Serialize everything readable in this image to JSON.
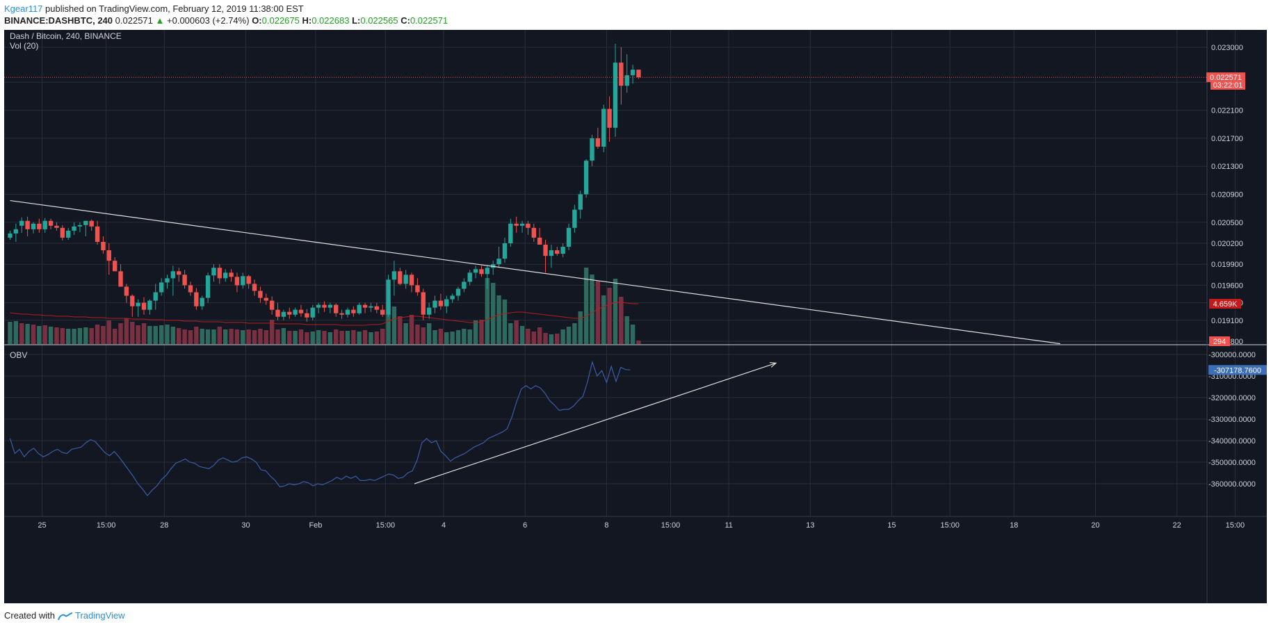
{
  "header": {
    "author": "Kgear117",
    "published": "published on TradingView.com, February 12, 2019 11:38:00 EST",
    "symbol": "BINANCE:DASHBTC, 240",
    "last": "0.022571",
    "change_arrow": "▲",
    "change": "+0.000603 (+2.74%)",
    "o_label": "O:",
    "o": "0.022675",
    "h_label": "H:",
    "h": "0.022683",
    "l_label": "L:",
    "l": "0.022565",
    "c_label": "C:",
    "c": "0.022571"
  },
  "legend": {
    "main": "Dash / Bitcoin, 240, BINANCE",
    "vol": "Vol (20)",
    "obv": "OBV"
  },
  "badges": {
    "price": "0.022571",
    "countdown": "03:22:01",
    "vol_ma": "4.659K",
    "vol": "294",
    "obv": "-307178.7600"
  },
  "footer": {
    "created_with": "Created with",
    "brand": "TradingView"
  },
  "colors": {
    "background": "#131722",
    "grid": "#2a2e39",
    "up": "#26a69a",
    "down": "#ef5350",
    "vol_up": "#2e6b5e",
    "vol_down": "#7a3040",
    "vol_ma": "#b71c1c",
    "obv_line": "#3b5da8",
    "obv_badge": "#3d6fb8",
    "price_badge": "#ef5350",
    "trendline": "#e0e0e0"
  },
  "chart_data": {
    "type": "candlestick",
    "price_axis": {
      "ticks": [
        0.023,
        0.0225,
        0.0221,
        0.0217,
        0.0213,
        0.0209,
        0.0205,
        0.0202,
        0.0199,
        0.0196,
        0.01935,
        0.0191,
        0.0188
      ],
      "tick_labels": [
        "0.023000",
        "0.022500",
        "0.022100",
        "0.021700",
        "0.021300",
        "0.020900",
        "0.020500",
        "0.020200",
        "0.019900",
        "0.019600",
        "0.019350",
        "0.019100",
        "0.018800"
      ],
      "range": [
        0.01876,
        0.02308
      ]
    },
    "time_axis": {
      "labels": [
        "25",
        "15:00",
        "28",
        "30",
        "Feb",
        "15:00",
        "4",
        "6",
        "8",
        "15:00",
        "11",
        "13",
        "15",
        "15:00",
        "18",
        "20",
        "22",
        "15:00"
      ],
      "label_bars": [
        5.5,
        16.5,
        26.5,
        40.5,
        52.5,
        64.5,
        74.5,
        88.5,
        102.5,
        113.5,
        123.5,
        137.5,
        151.5,
        161.5,
        172.5,
        186.5,
        200.5,
        210.5
      ]
    },
    "candles_ohlc": [
      [
        0.02028,
        0.02038,
        0.02025,
        0.02034
      ],
      [
        0.02034,
        0.02048,
        0.02022,
        0.0204
      ],
      [
        0.02045,
        0.02057,
        0.02035,
        0.02052
      ],
      [
        0.02052,
        0.02058,
        0.0203,
        0.0204
      ],
      [
        0.0204,
        0.0205,
        0.02034,
        0.02048
      ],
      [
        0.02048,
        0.02055,
        0.02035,
        0.0204
      ],
      [
        0.0204,
        0.02056,
        0.02035,
        0.02052
      ],
      [
        0.02052,
        0.02055,
        0.0204,
        0.02045
      ],
      [
        0.02045,
        0.0205,
        0.02038,
        0.02042
      ],
      [
        0.02042,
        0.02046,
        0.02024,
        0.02028
      ],
      [
        0.02028,
        0.02042,
        0.02025,
        0.02038
      ],
      [
        0.02038,
        0.0205,
        0.02032,
        0.02044
      ],
      [
        0.02044,
        0.0205,
        0.02036,
        0.02046
      ],
      [
        0.02046,
        0.02052,
        0.0203,
        0.02052
      ],
      [
        0.02052,
        0.02054,
        0.02038,
        0.02044
      ],
      [
        0.02044,
        0.02052,
        0.02018,
        0.02022
      ],
      [
        0.02022,
        0.0203,
        0.02005,
        0.0201
      ],
      [
        0.0201,
        0.0202,
        0.01975,
        0.01995
      ],
      [
        0.01995,
        0.02,
        0.01984,
        0.0198
      ],
      [
        0.0198,
        0.0199,
        0.01975,
        0.01958
      ],
      [
        0.01958,
        0.01962,
        0.01935,
        0.01945
      ],
      [
        0.01945,
        0.01947,
        0.01915,
        0.0193
      ],
      [
        0.0193,
        0.0194,
        0.01915,
        0.01935
      ],
      [
        0.01935,
        0.01943,
        0.01918,
        0.01925
      ],
      [
        0.01925,
        0.0194,
        0.01918,
        0.01938
      ],
      [
        0.01938,
        0.01962,
        0.01925,
        0.0195
      ],
      [
        0.0195,
        0.0197,
        0.01945,
        0.01964
      ],
      [
        0.01964,
        0.01975,
        0.01955,
        0.0197
      ],
      [
        0.0197,
        0.01988,
        0.01945,
        0.0198
      ],
      [
        0.0198,
        0.01985,
        0.01965,
        0.01975
      ],
      [
        0.01975,
        0.01982,
        0.01955,
        0.0196
      ],
      [
        0.0196,
        0.01965,
        0.01945,
        0.0195
      ],
      [
        0.0195,
        0.01956,
        0.01925,
        0.0193
      ],
      [
        0.0193,
        0.01945,
        0.01925,
        0.01942
      ],
      [
        0.01942,
        0.01978,
        0.01935,
        0.01974
      ],
      [
        0.01974,
        0.0199,
        0.01965,
        0.01985
      ],
      [
        0.01985,
        0.0199,
        0.01962,
        0.0197
      ],
      [
        0.0197,
        0.01983,
        0.01965,
        0.01978
      ],
      [
        0.01978,
        0.01983,
        0.01965,
        0.01972
      ],
      [
        0.01972,
        0.01978,
        0.0195,
        0.0196
      ],
      [
        0.0196,
        0.01978,
        0.01955,
        0.01973
      ],
      [
        0.01973,
        0.01975,
        0.01955,
        0.01962
      ],
      [
        0.01962,
        0.01968,
        0.01945,
        0.01952
      ],
      [
        0.01952,
        0.01958,
        0.01935,
        0.01942
      ],
      [
        0.01942,
        0.01948,
        0.01932,
        0.01938
      ],
      [
        0.01938,
        0.01944,
        0.01918,
        0.01925
      ],
      [
        0.01925,
        0.01935,
        0.0191,
        0.01915
      ],
      [
        0.01915,
        0.01925,
        0.0191,
        0.01922
      ],
      [
        0.01922,
        0.01928,
        0.01912,
        0.01918
      ],
      [
        0.01918,
        0.01928,
        0.01915,
        0.01925
      ],
      [
        0.01925,
        0.01932,
        0.01915,
        0.0192
      ],
      [
        0.0192,
        0.01926,
        0.01908,
        0.01914
      ],
      [
        0.01914,
        0.01932,
        0.0191,
        0.01928
      ],
      [
        0.01928,
        0.01935,
        0.0192,
        0.01932
      ],
      [
        0.01932,
        0.01937,
        0.01922,
        0.01928
      ],
      [
        0.01928,
        0.01935,
        0.0192,
        0.01932
      ],
      [
        0.01932,
        0.01934,
        0.01915,
        0.0192
      ],
      [
        0.0192,
        0.01925,
        0.01912,
        0.01918
      ],
      [
        0.01918,
        0.01928,
        0.01914,
        0.01925
      ],
      [
        0.01925,
        0.0193,
        0.01915,
        0.0192
      ],
      [
        0.0192,
        0.01935,
        0.01918,
        0.01932
      ],
      [
        0.01932,
        0.01935,
        0.0192,
        0.01928
      ],
      [
        0.01928,
        0.01935,
        0.01922,
        0.0193
      ],
      [
        0.0193,
        0.01935,
        0.0192,
        0.01925
      ],
      [
        0.01925,
        0.01932,
        0.01915,
        0.01918
      ],
      [
        0.01918,
        0.01975,
        0.01915,
        0.01968
      ],
      [
        0.01968,
        0.01995,
        0.01945,
        0.0198
      ],
      [
        0.0198,
        0.01985,
        0.0196,
        0.01962
      ],
      [
        0.01962,
        0.01982,
        0.01955,
        0.01975
      ],
      [
        0.01975,
        0.01978,
        0.0195,
        0.0196
      ],
      [
        0.0196,
        0.0197,
        0.01945,
        0.0195
      ],
      [
        0.0195,
        0.01955,
        0.0191,
        0.01918
      ],
      [
        0.01918,
        0.01935,
        0.01912,
        0.01928
      ],
      [
        0.01928,
        0.01945,
        0.0192,
        0.01938
      ],
      [
        0.01938,
        0.01948,
        0.01925,
        0.0193
      ],
      [
        0.0193,
        0.01945,
        0.0192,
        0.0194
      ],
      [
        0.0194,
        0.01948,
        0.01935,
        0.01945
      ],
      [
        0.01945,
        0.01958,
        0.01938,
        0.01955
      ],
      [
        0.01955,
        0.0197,
        0.0195,
        0.01965
      ],
      [
        0.01965,
        0.01982,
        0.0196,
        0.01978
      ],
      [
        0.01978,
        0.01988,
        0.0197,
        0.01983
      ],
      [
        0.01983,
        0.01988,
        0.01972,
        0.01976
      ],
      [
        0.01976,
        0.01988,
        0.01955,
        0.01985
      ],
      [
        0.01985,
        0.01995,
        0.01975,
        0.0199
      ],
      [
        0.0199,
        0.02015,
        0.01985,
        0.01998
      ],
      [
        0.01998,
        0.02028,
        0.01992,
        0.0202
      ],
      [
        0.0202,
        0.02055,
        0.02015,
        0.02048
      ],
      [
        0.02048,
        0.02058,
        0.02035,
        0.02045
      ],
      [
        0.02045,
        0.02052,
        0.02035,
        0.02048
      ],
      [
        0.02048,
        0.02052,
        0.02032,
        0.02042
      ],
      [
        0.02042,
        0.02048,
        0.02022,
        0.02028
      ],
      [
        0.02028,
        0.02042,
        0.0202,
        0.02018
      ],
      [
        0.02018,
        0.02025,
        0.01978,
        0.02002
      ],
      [
        0.02002,
        0.02018,
        0.01985,
        0.0201
      ],
      [
        0.0201,
        0.02015,
        0.02002,
        0.02005
      ],
      [
        0.02005,
        0.0202,
        0.02,
        0.02015
      ],
      [
        0.02015,
        0.02048,
        0.0201,
        0.02042
      ],
      [
        0.02042,
        0.02075,
        0.02035,
        0.02068
      ],
      [
        0.02068,
        0.02095,
        0.02055,
        0.0209
      ],
      [
        0.0209,
        0.0214,
        0.02085,
        0.02138
      ],
      [
        0.02138,
        0.02175,
        0.0213,
        0.0217
      ],
      [
        0.0217,
        0.02185,
        0.02155,
        0.02158
      ],
      [
        0.02158,
        0.02218,
        0.0215,
        0.02212
      ],
      [
        0.02212,
        0.0223,
        0.02165,
        0.02185
      ],
      [
        0.02185,
        0.02305,
        0.02172,
        0.02278
      ],
      [
        0.02278,
        0.023,
        0.02218,
        0.02245
      ],
      [
        0.02245,
        0.0229,
        0.02235,
        0.0226
      ],
      [
        0.0226,
        0.02275,
        0.02248,
        0.02268
      ],
      [
        0.02268,
        0.02268,
        0.02255,
        0.02257
      ]
    ],
    "volume": [
      32,
      33,
      30,
      29,
      28,
      26,
      27,
      25,
      24,
      23,
      22,
      22,
      23,
      24,
      23,
      28,
      26,
      34,
      22,
      30,
      37,
      32,
      27,
      30,
      26,
      26,
      27,
      28,
      25,
      23,
      21,
      20,
      25,
      22,
      21,
      21,
      25,
      21,
      22,
      21,
      20,
      21,
      20,
      22,
      20,
      35,
      21,
      23,
      19,
      19,
      21,
      17,
      18,
      20,
      19,
      17,
      21,
      19,
      19,
      20,
      18,
      20,
      17,
      18,
      22,
      60,
      54,
      40,
      30,
      42,
      28,
      24,
      30,
      20,
      22,
      17,
      18,
      20,
      22,
      21,
      34,
      35,
      95,
      88,
      70,
      64,
      30,
      34,
      26,
      22,
      18,
      24,
      16,
      14,
      15,
      21,
      25,
      30,
      47,
      110,
      100,
      91,
      70,
      81,
      94,
      68,
      40,
      28,
      5
    ],
    "volume_up_flags": [
      1,
      1,
      0,
      1,
      0,
      1,
      0,
      1,
      0,
      0,
      1,
      1,
      1,
      1,
      0,
      0,
      0,
      0,
      0,
      0,
      0,
      0,
      0,
      0,
      1,
      1,
      1,
      1,
      1,
      0,
      0,
      0,
      0,
      1,
      1,
      1,
      0,
      1,
      0,
      0,
      1,
      0,
      0,
      0,
      0,
      0,
      0,
      1,
      0,
      1,
      0,
      0,
      1,
      1,
      0,
      1,
      0,
      0,
      1,
      0,
      1,
      0,
      1,
      0,
      0,
      1,
      1,
      0,
      1,
      0,
      0,
      0,
      1,
      1,
      0,
      1,
      1,
      1,
      1,
      1,
      1,
      0,
      1,
      1,
      1,
      1,
      1,
      0,
      1,
      0,
      0,
      0,
      0,
      1,
      0,
      1,
      1,
      1,
      1,
      1,
      1,
      0,
      1,
      0,
      1,
      0,
      1,
      1,
      0
    ],
    "volume_ma": [
      45,
      44,
      43,
      43,
      42,
      42,
      41,
      41,
      40,
      40,
      40,
      39,
      39,
      39,
      38,
      38,
      38,
      37,
      37,
      37,
      37,
      36,
      36,
      36,
      35,
      35,
      35,
      34,
      34,
      34,
      33,
      33,
      33,
      32,
      32,
      32,
      32,
      31,
      31,
      31,
      31,
      30,
      30,
      30,
      30,
      30,
      29,
      29,
      29,
      29,
      29,
      28,
      28,
      28,
      28,
      28,
      28,
      27,
      27,
      27,
      27,
      27,
      28,
      28,
      29,
      33,
      36,
      38,
      39,
      40,
      40,
      39,
      38,
      37,
      36,
      35,
      34,
      33,
      32,
      31,
      31,
      32,
      35,
      39,
      42,
      44,
      45,
      46,
      46,
      45,
      44,
      43,
      42,
      41,
      40,
      39,
      38,
      37,
      37,
      40,
      45,
      50,
      54,
      57,
      60,
      60,
      59,
      58,
      58
    ],
    "obv_values": [
      -339000,
      -346000,
      -344000,
      -347500,
      -345000,
      -343500,
      -346000,
      -347500,
      -346500,
      -345000,
      -344000,
      -345500,
      -346000,
      -344000,
      -343500,
      -343000,
      -341000,
      -339500,
      -340500,
      -343000,
      -345500,
      -347000,
      -345000,
      -347500,
      -350500,
      -353500,
      -356500,
      -360000,
      -362500,
      -365500,
      -363000,
      -361000,
      -358000,
      -356000,
      -353000,
      -350500,
      -349500,
      -348500,
      -350000,
      -350500,
      -352000,
      -352500,
      -353000,
      -351500,
      -349000,
      -348000,
      -349000,
      -350000,
      -349500,
      -348000,
      -347500,
      -348500,
      -350000,
      -353500,
      -354000,
      -356500,
      -358500,
      -361500,
      -361000,
      -360000,
      -360500,
      -360000,
      -359000,
      -359500,
      -361000,
      -360000,
      -360500,
      -359500,
      -358500,
      -357000,
      -358000,
      -356500,
      -357500,
      -356500,
      -358500,
      -358500,
      -358000,
      -358500,
      -357500,
      -356500,
      -355500,
      -356000,
      -357500,
      -357000,
      -355000,
      -354000,
      -349000,
      -341000,
      -339000,
      -341000,
      -340000,
      -345000,
      -347000,
      -349500,
      -348000,
      -347000,
      -346000,
      -344500,
      -343000,
      -342000,
      -341000,
      -339000,
      -338000,
      -337000,
      -336000,
      -334500,
      -329000,
      -322000,
      -316000,
      -314500,
      -316000,
      -314500,
      -315500,
      -318000,
      -321500,
      -323500,
      -326000,
      -325500,
      -325500,
      -324000,
      -321500,
      -319500,
      -312500,
      -303500,
      -310000,
      -307500,
      -313000,
      -305500,
      -312500,
      -306000,
      -307000,
      -307178.76
    ],
    "obv_axis": {
      "tick_values": [
        -300000,
        -310000,
        -320000,
        -330000,
        -340000,
        -350000,
        -360000
      ],
      "tick_labels": [
        "-300000.0000",
        "-310000.0000",
        "-320000.0000",
        "-330000.0000",
        "-340000.0000",
        "-350000.0000",
        "-360000.0000"
      ],
      "range": [
        -367500,
        -297500
      ]
    },
    "trendlines": [
      {
        "from": {
          "bar": 0,
          "price": 0.02081
        },
        "to": {
          "bar": 190,
          "price": 0.018785
        },
        "pane": "price"
      },
      {
        "from": {
          "bar": 62,
          "obv": -360000
        },
        "to": {
          "bar": 117,
          "obv": -304000
        },
        "pane": "obv",
        "arrow": true
      }
    ],
    "last_price": 0.022571
  }
}
